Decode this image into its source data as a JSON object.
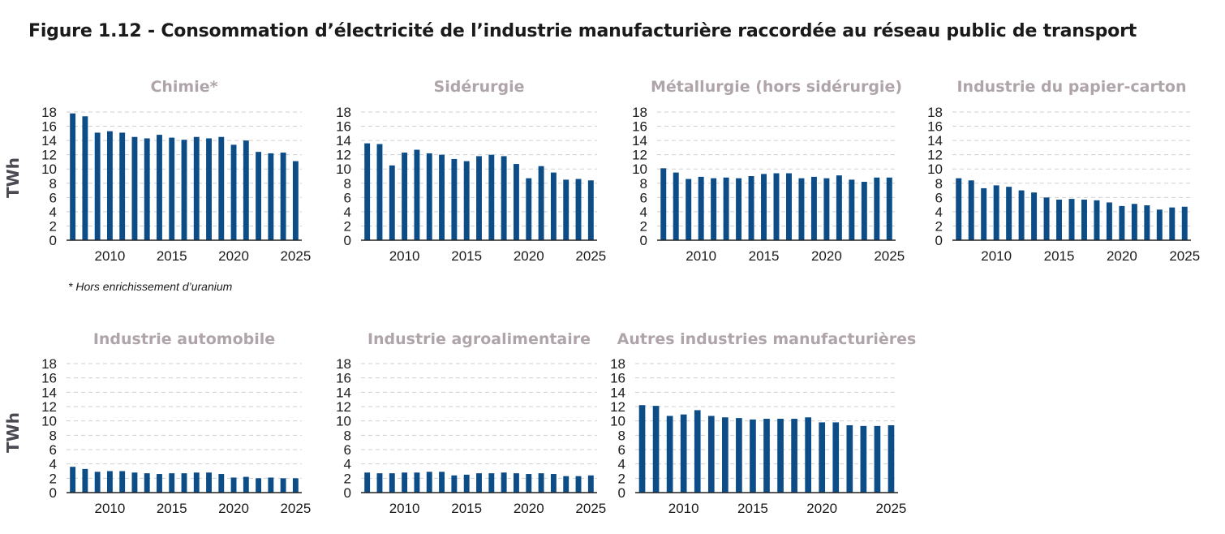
{
  "title": "Figure 1.12 - Consommation d’électricité de l’industrie manufacturière raccordée au réseau public de transport",
  "ylabel": "TWh",
  "footnote": "* Hors enrichissement d’uranium",
  "colors": {
    "bar": "#0d4d87",
    "panel_title": "#b0a4ab"
  },
  "chart_data": [
    {
      "type": "bar",
      "title": "Chimie*",
      "ylabel": "TWh",
      "ylim": [
        0,
        18
      ],
      "yticks": [
        0,
        2,
        4,
        6,
        8,
        10,
        12,
        14,
        16,
        18
      ],
      "xticks": [
        2010,
        2015,
        2020,
        2025
      ],
      "x": [
        2007,
        2008,
        2009,
        2010,
        2011,
        2012,
        2013,
        2014,
        2015,
        2016,
        2017,
        2018,
        2019,
        2020,
        2021,
        2022,
        2023,
        2024,
        2025
      ],
      "values": [
        17.8,
        17.4,
        15.1,
        15.3,
        15.1,
        14.5,
        14.3,
        14.8,
        14.4,
        14.1,
        14.5,
        14.3,
        14.5,
        13.4,
        14.0,
        12.4,
        12.2,
        12.3,
        11.1
      ]
    },
    {
      "type": "bar",
      "title": "Sidérurgie",
      "ylim": [
        0,
        18
      ],
      "yticks": [
        0,
        2,
        4,
        6,
        8,
        10,
        12,
        14,
        16,
        18
      ],
      "xticks": [
        2010,
        2015,
        2020,
        2025
      ],
      "x": [
        2007,
        2008,
        2009,
        2010,
        2011,
        2012,
        2013,
        2014,
        2015,
        2016,
        2017,
        2018,
        2019,
        2020,
        2021,
        2022,
        2023,
        2024,
        2025
      ],
      "values": [
        13.6,
        13.5,
        10.5,
        12.3,
        12.7,
        12.2,
        12.0,
        11.4,
        11.1,
        11.8,
        12.0,
        11.8,
        10.7,
        8.7,
        10.4,
        9.5,
        8.5,
        8.6,
        8.4
      ]
    },
    {
      "type": "bar",
      "title": "Métallurgie (hors sidérurgie)",
      "ylim": [
        0,
        18
      ],
      "yticks": [
        0,
        2,
        4,
        6,
        8,
        10,
        12,
        14,
        16,
        18
      ],
      "xticks": [
        2010,
        2015,
        2020,
        2025
      ],
      "x": [
        2007,
        2008,
        2009,
        2010,
        2011,
        2012,
        2013,
        2014,
        2015,
        2016,
        2017,
        2018,
        2019,
        2020,
        2021,
        2022,
        2023,
        2024,
        2025
      ],
      "values": [
        10.1,
        9.5,
        8.6,
        8.9,
        8.7,
        8.8,
        8.7,
        9.0,
        9.3,
        9.4,
        9.4,
        8.7,
        8.9,
        8.7,
        9.1,
        8.5,
        8.2,
        8.8,
        8.8
      ]
    },
    {
      "type": "bar",
      "title": "Industrie du papier-carton",
      "ylim": [
        0,
        18
      ],
      "yticks": [
        0,
        2,
        4,
        6,
        8,
        10,
        12,
        14,
        16,
        18
      ],
      "xticks": [
        2010,
        2015,
        2020,
        2025
      ],
      "x": [
        2007,
        2008,
        2009,
        2010,
        2011,
        2012,
        2013,
        2014,
        2015,
        2016,
        2017,
        2018,
        2019,
        2020,
        2021,
        2022,
        2023,
        2024,
        2025
      ],
      "values": [
        8.7,
        8.4,
        7.3,
        7.7,
        7.5,
        7.0,
        6.7,
        6.0,
        5.7,
        5.8,
        5.7,
        5.6,
        5.3,
        4.8,
        5.1,
        4.9,
        4.3,
        4.6,
        4.7
      ]
    },
    {
      "type": "bar",
      "title": "Industrie automobile",
      "ylabel": "TWh",
      "ylim": [
        0,
        18
      ],
      "yticks": [
        0,
        2,
        4,
        6,
        8,
        10,
        12,
        14,
        16,
        18
      ],
      "xticks": [
        2010,
        2015,
        2020,
        2025
      ],
      "x": [
        2007,
        2008,
        2009,
        2010,
        2011,
        2012,
        2013,
        2014,
        2015,
        2016,
        2017,
        2018,
        2019,
        2020,
        2021,
        2022,
        2023,
        2024,
        2025
      ],
      "values": [
        3.6,
        3.3,
        2.9,
        3.0,
        3.0,
        2.8,
        2.7,
        2.6,
        2.7,
        2.7,
        2.8,
        2.8,
        2.6,
        2.1,
        2.2,
        2.0,
        2.1,
        2.0,
        2.0
      ]
    },
    {
      "type": "bar",
      "title": "Industrie agroalimentaire",
      "ylim": [
        0,
        18
      ],
      "yticks": [
        0,
        2,
        4,
        6,
        8,
        10,
        12,
        14,
        16,
        18
      ],
      "xticks": [
        2010,
        2015,
        2020,
        2025
      ],
      "x": [
        2007,
        2008,
        2009,
        2010,
        2011,
        2012,
        2013,
        2014,
        2015,
        2016,
        2017,
        2018,
        2019,
        2020,
        2021,
        2022,
        2023,
        2024,
        2025
      ],
      "values": [
        2.8,
        2.7,
        2.7,
        2.8,
        2.8,
        2.9,
        2.9,
        2.4,
        2.5,
        2.7,
        2.7,
        2.8,
        2.7,
        2.6,
        2.7,
        2.6,
        2.3,
        2.3,
        2.4
      ]
    },
    {
      "type": "bar",
      "title": "Autres industries manufacturières",
      "ylim": [
        0,
        18
      ],
      "yticks": [
        0,
        2,
        4,
        6,
        8,
        10,
        12,
        14,
        16,
        18
      ],
      "xticks": [
        2010,
        2015,
        2020,
        2025
      ],
      "x": [
        2007,
        2008,
        2009,
        2010,
        2011,
        2012,
        2013,
        2014,
        2015,
        2016,
        2017,
        2018,
        2019,
        2020,
        2021,
        2022,
        2023,
        2024,
        2025
      ],
      "values": [
        12.2,
        12.1,
        10.7,
        10.9,
        11.5,
        10.7,
        10.5,
        10.4,
        10.2,
        10.3,
        10.3,
        10.3,
        10.5,
        9.8,
        9.8,
        9.4,
        9.3,
        9.3,
        9.4
      ]
    }
  ]
}
